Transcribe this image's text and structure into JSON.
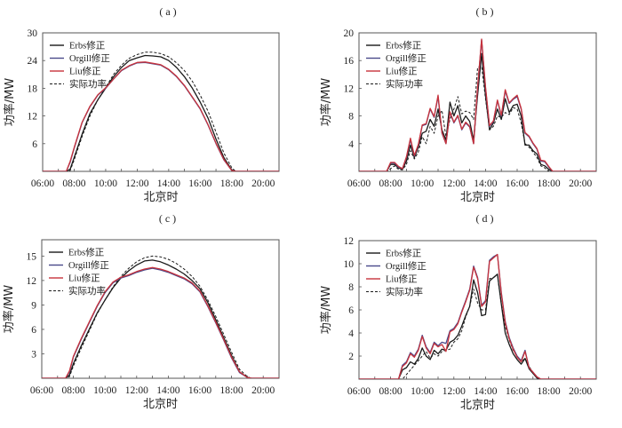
{
  "chart_data": [
    {
      "type": "line",
      "panel": "a",
      "title": "( a )",
      "xlabel": "北京时",
      "ylabel": "功率/MW",
      "xlim": [
        6,
        21
      ],
      "ylim": [
        0,
        30
      ],
      "xticks": [
        6,
        8,
        10,
        12,
        14,
        16,
        18,
        20
      ],
      "xtick_labels": [
        "06:00",
        "08:00",
        "10:00",
        "12:00",
        "14:00",
        "16:00",
        "18:00",
        "20:00"
      ],
      "yticks": [
        6,
        12,
        18,
        24,
        30
      ],
      "ytick_labels": [
        "6",
        "12",
        "18",
        "24",
        "30"
      ],
      "legend_position": "top-left",
      "x": [
        6,
        7.5,
        7.75,
        8,
        8.5,
        9,
        9.5,
        10,
        10.5,
        11,
        11.5,
        12,
        12.5,
        13,
        13.5,
        14,
        14.5,
        15,
        15.5,
        16,
        16.5,
        17,
        17.5,
        18,
        18.25,
        21
      ],
      "series": [
        {
          "name": "Erbs修正",
          "color": "#1a1a1a",
          "dash": false,
          "values": [
            0,
            0,
            0.5,
            3,
            8,
            12.5,
            15.5,
            18,
            20.5,
            22.5,
            24,
            24.6,
            25.1,
            25,
            24.8,
            24,
            22.5,
            20.5,
            18,
            15,
            11.5,
            7,
            3,
            0.3,
            0,
            0
          ]
        },
        {
          "name": "Orgill修正",
          "color": "#4a4a8a",
          "dash": false,
          "values": [
            0,
            0,
            2,
            5,
            10.5,
            14,
            16.5,
            18,
            20,
            21.8,
            22.8,
            23.5,
            23.6,
            23.3,
            23,
            22,
            20.5,
            18.5,
            16,
            13.5,
            10,
            6,
            2.5,
            0.2,
            0,
            0
          ]
        },
        {
          "name": "Liu修正",
          "color": "#c8323c",
          "dash": false,
          "values": [
            0,
            0,
            2.2,
            5.2,
            10.6,
            14.1,
            16.6,
            18.1,
            20,
            21.9,
            22.9,
            23.6,
            23.7,
            23.4,
            23.1,
            22.1,
            20.6,
            18.6,
            16.1,
            13.6,
            10.1,
            6.1,
            2.6,
            0.2,
            0,
            0
          ]
        },
        {
          "name": "实际功率",
          "color": "#1a1a1a",
          "dash": true,
          "values": [
            0,
            0,
            0.2,
            2.5,
            7.5,
            12,
            15.5,
            18.2,
            21,
            23,
            24.5,
            25.3,
            25.8,
            25.8,
            25.5,
            24.8,
            23.5,
            21.8,
            19.5,
            16.5,
            13,
            8.5,
            4,
            0.8,
            0,
            0
          ]
        }
      ]
    },
    {
      "type": "line",
      "panel": "b",
      "title": "( b )",
      "xlabel": "北京时",
      "ylabel": "功率/MW",
      "xlim": [
        6,
        21
      ],
      "ylim": [
        0,
        20
      ],
      "xticks": [
        6,
        8,
        10,
        12,
        14,
        16,
        18,
        20
      ],
      "xtick_labels": [
        "06:00",
        "08:00",
        "10:00",
        "12:00",
        "14:00",
        "16:00",
        "18:00",
        "20:00"
      ],
      "yticks": [
        4,
        8,
        12,
        16,
        20
      ],
      "ytick_labels": [
        "4",
        "8",
        "12",
        "16",
        "20"
      ],
      "legend_position": "top-left",
      "x": [
        6,
        7.5,
        7.75,
        8,
        8.25,
        8.5,
        8.75,
        9,
        9.25,
        9.5,
        9.75,
        10,
        10.25,
        10.5,
        10.75,
        11,
        11.25,
        11.5,
        11.75,
        12,
        12.25,
        12.5,
        12.75,
        13,
        13.25,
        13.5,
        13.75,
        14,
        14.25,
        14.5,
        14.75,
        15,
        15.25,
        15.5,
        15.75,
        16,
        16.25,
        16.5,
        16.75,
        17,
        17.25,
        17.5,
        17.75,
        18,
        18.25,
        18.5,
        21
      ],
      "series": [
        {
          "name": "Erbs修正",
          "color": "#1a1a1a",
          "dash": false,
          "values": [
            0,
            0,
            0,
            1,
            1,
            0.5,
            0.3,
            1.5,
            3.8,
            2,
            3.5,
            5.5,
            5.8,
            7.5,
            6.5,
            9,
            6,
            4.5,
            10,
            8,
            9.5,
            7,
            8,
            7.2,
            4.5,
            11,
            17,
            11,
            6,
            7,
            9,
            7.5,
            10.5,
            8.5,
            9.5,
            9.7,
            8,
            3.8,
            3.8,
            3,
            2.5,
            1,
            0.8,
            0.3,
            0,
            0,
            0
          ]
        },
        {
          "name": "Orgill修正",
          "color": "#4a4a8a",
          "dash": false,
          "values": [
            0,
            0,
            0,
            1.2,
            1.2,
            0.6,
            0.4,
            2,
            4.6,
            2.2,
            3.8,
            6.6,
            6.8,
            9,
            7.8,
            10.8,
            5.5,
            4,
            8.5,
            7,
            8,
            6,
            7,
            6.4,
            4,
            12,
            19,
            12,
            6.5,
            7.2,
            10.2,
            8,
            11.6,
            9.8,
            10.4,
            10.8,
            9,
            5.5,
            5,
            4,
            3.2,
            1.5,
            1.4,
            0.6,
            0,
            0,
            0
          ]
        },
        {
          "name": "Liu修正",
          "color": "#c8323c",
          "dash": false,
          "values": [
            0,
            0,
            0,
            1.3,
            1.3,
            0.7,
            0.4,
            2.1,
            4.8,
            2.3,
            3.9,
            6.7,
            6.9,
            9.1,
            7.9,
            11,
            5.6,
            4,
            8.6,
            7.1,
            8.1,
            6.1,
            7.1,
            6.5,
            4,
            12.2,
            19.1,
            12.2,
            6.6,
            7.3,
            10.3,
            8.1,
            11.8,
            9.9,
            10.5,
            11,
            9.1,
            5.6,
            5.1,
            4.1,
            3.3,
            1.6,
            1.5,
            0.7,
            0,
            0,
            0
          ]
        },
        {
          "name": "实际功率",
          "color": "#1a1a1a",
          "dash": true,
          "values": [
            0,
            0,
            0,
            0.4,
            0.8,
            0.3,
            0.2,
            1,
            3,
            1.8,
            2.8,
            5,
            4,
            6.5,
            5.5,
            8,
            8.8,
            5,
            7.5,
            9,
            10.8,
            8.3,
            8.7,
            8.5,
            7.5,
            15,
            15.2,
            10.5,
            6,
            6.5,
            8,
            7.8,
            8.5,
            8.2,
            9.2,
            9,
            7,
            4,
            3.5,
            2.8,
            2,
            0.8,
            0.5,
            0,
            0,
            0,
            0
          ]
        }
      ]
    },
    {
      "type": "line",
      "panel": "c",
      "title": "( c )",
      "xlabel": "北京时",
      "ylabel": "功率/MW",
      "xlim": [
        6,
        21
      ],
      "ylim": [
        0,
        17
      ],
      "xticks": [
        6,
        8,
        10,
        12,
        14,
        16,
        18,
        20
      ],
      "xtick_labels": [
        "06:00",
        "08:00",
        "10:00",
        "12:00",
        "14:00",
        "16:00",
        "18:00",
        "20:00"
      ],
      "yticks": [
        3,
        6,
        9,
        12,
        15
      ],
      "ytick_labels": [
        "3",
        "6",
        "9",
        "12",
        "15"
      ],
      "legend_position": "top-left",
      "x": [
        6,
        7.5,
        7.75,
        8,
        8.5,
        9,
        9.5,
        10,
        10.5,
        11,
        11.5,
        12,
        12.5,
        13,
        13.5,
        14,
        14.5,
        15,
        15.5,
        16,
        16.5,
        17,
        17.5,
        18,
        18.5,
        19,
        19.25,
        21
      ],
      "series": [
        {
          "name": "Erbs修正",
          "color": "#1a1a1a",
          "dash": false,
          "values": [
            0,
            0,
            0.4,
            1.8,
            4,
            6,
            8,
            9.6,
            11.1,
            12.3,
            13.2,
            13.9,
            14.4,
            14.5,
            14.3,
            13.9,
            13.4,
            12.8,
            12,
            11,
            9.3,
            7.2,
            5,
            2.8,
            0.8,
            0.1,
            0,
            0
          ]
        },
        {
          "name": "Orgill修正",
          "color": "#4a4a8a",
          "dash": false,
          "values": [
            0,
            0,
            0.8,
            2.6,
            4.8,
            6.8,
            8.8,
            10.5,
            11.7,
            12.3,
            12.6,
            13,
            13.3,
            13.5,
            13.3,
            13,
            12.6,
            12.2,
            11.6,
            10.6,
            8.8,
            6.8,
            4.7,
            2.5,
            0.7,
            0.1,
            0,
            0
          ]
        },
        {
          "name": "Liu修正",
          "color": "#c8323c",
          "dash": false,
          "values": [
            0,
            0,
            0.9,
            2.7,
            4.9,
            6.9,
            8.9,
            10.6,
            11.8,
            12.4,
            12.7,
            13.1,
            13.4,
            13.6,
            13.4,
            13.1,
            12.7,
            12.3,
            11.7,
            10.7,
            8.9,
            6.9,
            4.8,
            2.6,
            0.8,
            0.1,
            0,
            0
          ]
        },
        {
          "name": "实际功率",
          "color": "#1a1a1a",
          "dash": true,
          "values": [
            0,
            0,
            0.2,
            1.5,
            3.7,
            5.8,
            7.9,
            9.6,
            11.2,
            12.5,
            13.5,
            14.3,
            14.8,
            15,
            14.9,
            14.6,
            14.1,
            13.4,
            12.5,
            11.3,
            9.6,
            7.6,
            5.4,
            3.2,
            1.1,
            0.2,
            0,
            0
          ]
        }
      ]
    },
    {
      "type": "line",
      "panel": "d",
      "title": "( d )",
      "xlabel": "北京时",
      "ylabel": "功率/MW",
      "xlim": [
        6,
        21
      ],
      "ylim": [
        0,
        12
      ],
      "xticks": [
        6,
        8,
        10,
        12,
        14,
        16,
        18,
        20
      ],
      "xtick_labels": [
        "06:00",
        "08:00",
        "10:00",
        "12:00",
        "14:00",
        "16:00",
        "18:00",
        "20:00"
      ],
      "yticks": [
        2,
        4,
        6,
        8,
        10,
        12
      ],
      "ytick_labels": [
        "2",
        "4",
        "6",
        "8",
        "10",
        "12"
      ],
      "legend_position": "top-left",
      "x": [
        6,
        8.5,
        8.75,
        9,
        9.25,
        9.5,
        9.75,
        10,
        10.25,
        10.5,
        10.75,
        11,
        11.25,
        11.5,
        11.75,
        12,
        12.25,
        12.5,
        12.75,
        13,
        13.25,
        13.5,
        13.75,
        14,
        14.25,
        14.5,
        14.75,
        15,
        15.25,
        15.5,
        15.75,
        16,
        16.25,
        16.5,
        16.75,
        17,
        17.25,
        17.5,
        17.75,
        18,
        21
      ],
      "series": [
        {
          "name": "Erbs修正",
          "color": "#1a1a1a",
          "dash": false,
          "values": [
            0,
            0,
            0.8,
            1,
            1.5,
            1.3,
            1.8,
            2.7,
            2,
            1.7,
            2.5,
            2.2,
            2.6,
            2.5,
            3.2,
            3.4,
            3.8,
            4.6,
            5.5,
            6.3,
            8.6,
            7.5,
            5.5,
            5.6,
            8.5,
            8.8,
            9.1,
            6.5,
            4,
            3,
            2.2,
            1.7,
            1.3,
            1.8,
            0.9,
            0.5,
            0.1,
            0,
            0,
            0,
            0
          ]
        },
        {
          "name": "Orgill修正",
          "color": "#4a4a8a",
          "dash": false,
          "values": [
            0,
            0,
            1.2,
            1.5,
            2.3,
            2,
            2.6,
            3.8,
            2.8,
            2.3,
            3.2,
            2.9,
            3.2,
            3.1,
            4.2,
            4.4,
            4.9,
            5.9,
            6.8,
            7.8,
            9.8,
            8.8,
            6.4,
            6.8,
            10.3,
            10.6,
            10.8,
            7.5,
            5,
            3.6,
            2.7,
            2,
            1.6,
            2.5,
            1,
            0.6,
            0.2,
            0,
            0,
            0,
            0
          ]
        },
        {
          "name": "Liu修正",
          "color": "#c8323c",
          "dash": false,
          "values": [
            0,
            0,
            1.1,
            1.4,
            2.2,
            1.9,
            2.5,
            3.7,
            2.7,
            2.2,
            3.1,
            2.8,
            3,
            2.4,
            4.1,
            4.3,
            4.8,
            5.8,
            6.7,
            7.7,
            9.7,
            8.7,
            6.3,
            6.7,
            10.2,
            10.5,
            10.8,
            7.4,
            4.9,
            3.5,
            2.6,
            1.9,
            1.5,
            2.4,
            1,
            0.6,
            0.2,
            0,
            0,
            0,
            0
          ]
        },
        {
          "name": "实际功率",
          "color": "#1a1a1a",
          "dash": true,
          "values": [
            0,
            0,
            0,
            0.4,
            0.8,
            1.2,
            1.6,
            2,
            2.4,
            1.8,
            2.2,
            2,
            2.4,
            2.5,
            2.6,
            3.2,
            3.5,
            4.2,
            5.4,
            6.3,
            7.8,
            6.6,
            6,
            6,
            8.7,
            8.8,
            9,
            6.5,
            4.6,
            3.4,
            2.5,
            2,
            1.5,
            1.8,
            1.1,
            0.6,
            0.2,
            0,
            0,
            0,
            0
          ]
        }
      ]
    }
  ]
}
